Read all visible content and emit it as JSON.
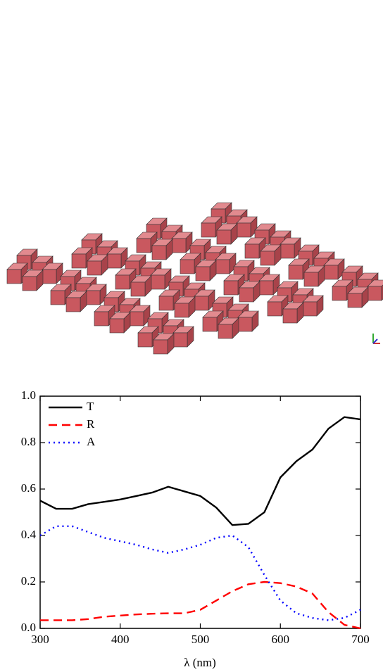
{
  "chart_data": {
    "type": "line",
    "x": [
      300,
      320,
      340,
      360,
      380,
      400,
      420,
      440,
      460,
      480,
      500,
      520,
      540,
      560,
      580,
      600,
      620,
      640,
      660,
      680,
      700
    ],
    "series": [
      {
        "name": "T",
        "color": "#000000",
        "dash": "none",
        "values": [
          0.55,
          0.515,
          0.515,
          0.535,
          0.545,
          0.555,
          0.57,
          0.585,
          0.61,
          0.59,
          0.57,
          0.52,
          0.445,
          0.45,
          0.5,
          0.65,
          0.72,
          0.77,
          0.86,
          0.91,
          0.9
        ]
      },
      {
        "name": "R",
        "color": "#ff0000",
        "dash": "12 7",
        "values": [
          0.035,
          0.035,
          0.035,
          0.04,
          0.05,
          0.055,
          0.06,
          0.063,
          0.065,
          0.065,
          0.08,
          0.12,
          0.16,
          0.19,
          0.2,
          0.195,
          0.18,
          0.15,
          0.07,
          0.015,
          0
        ]
      },
      {
        "name": "A",
        "color": "#0000ff",
        "dash": "2 5",
        "values": [
          0.4,
          0.44,
          0.44,
          0.415,
          0.39,
          0.375,
          0.36,
          0.34,
          0.325,
          0.34,
          0.36,
          0.39,
          0.4,
          0.35,
          0.23,
          0.12,
          0.065,
          0.045,
          0.035,
          0.045,
          0.08
        ]
      }
    ],
    "xlabel": "λ (nm)",
    "xlim": [
      300,
      700
    ],
    "xticks": [
      300,
      400,
      500,
      600,
      700
    ],
    "ylim": [
      0,
      1
    ],
    "yticks": [
      {
        "value": 0,
        "label": "0.0"
      },
      0.2,
      0.4,
      0.6,
      0.8,
      {
        "value": 1,
        "label": "1.0"
      }
    ],
    "legend": "upper left"
  }
}
